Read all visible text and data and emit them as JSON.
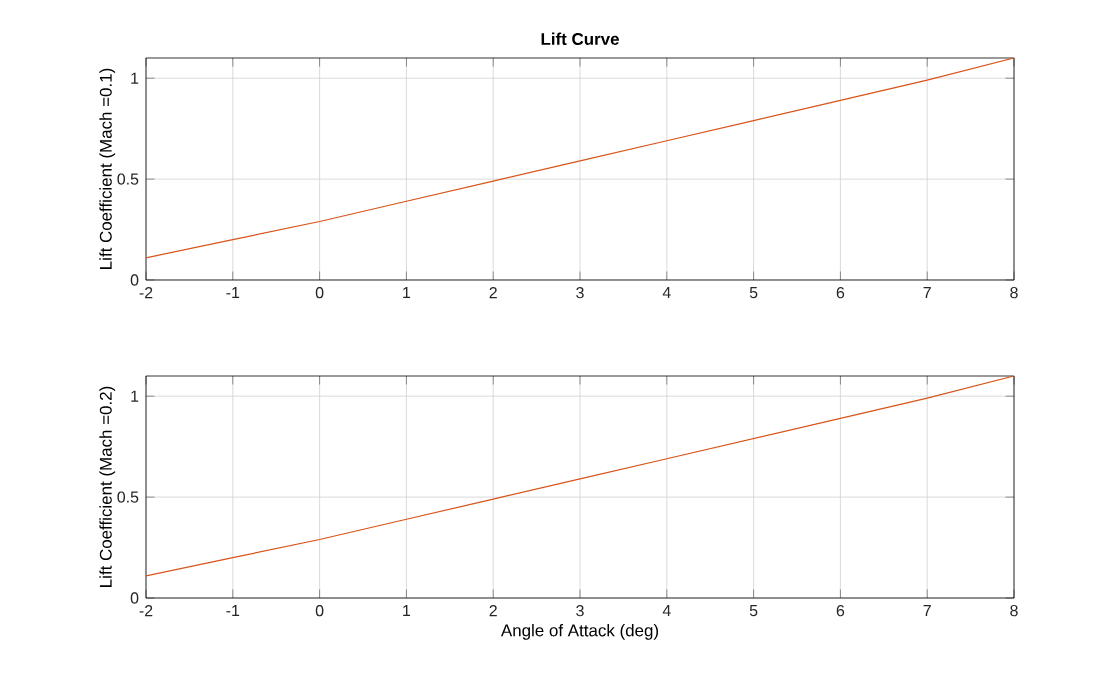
{
  "chart_data": [
    {
      "type": "line",
      "title": "Lift Curve",
      "ylabel": "Lift Coefficient (Mach =0.1)",
      "x": [
        -2,
        -1,
        0,
        1,
        2,
        3,
        4,
        5,
        6,
        7,
        8
      ],
      "series": [
        {
          "color": "#d95319",
          "values": [
            0.11,
            0.2,
            0.29,
            0.39,
            0.49,
            0.59,
            0.69,
            0.79,
            0.89,
            0.99,
            1.1
          ]
        }
      ],
      "xlim": [
        -2,
        8
      ],
      "ylim": [
        0,
        1.1
      ],
      "xticks": [
        -2,
        -1,
        0,
        1,
        2,
        3,
        4,
        5,
        6,
        7,
        8
      ],
      "yticks": [
        0,
        0.5,
        1
      ],
      "grid": true
    },
    {
      "type": "line",
      "xlabel": "Angle of Attack (deg)",
      "ylabel": "Lift Coefficient (Mach =0.2)",
      "x": [
        -2,
        -1,
        0,
        1,
        2,
        3,
        4,
        5,
        6,
        7,
        8
      ],
      "series": [
        {
          "color": "#d95319",
          "values": [
            0.11,
            0.2,
            0.29,
            0.39,
            0.49,
            0.59,
            0.69,
            0.79,
            0.89,
            0.99,
            1.1
          ]
        }
      ],
      "xlim": [
        -2,
        8
      ],
      "ylim": [
        0,
        1.1
      ],
      "xticks": [
        -2,
        -1,
        0,
        1,
        2,
        3,
        4,
        5,
        6,
        7,
        8
      ],
      "yticks": [
        0,
        0.5,
        1
      ],
      "grid": true
    }
  ]
}
